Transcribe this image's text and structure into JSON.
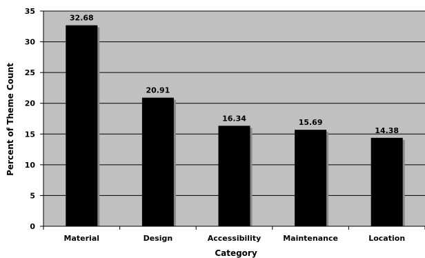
{
  "chart_data": {
    "type": "bar",
    "categories": [
      "Material",
      "Design",
      "Accessibility",
      "Maintenance",
      "Location"
    ],
    "values": [
      32.68,
      20.91,
      16.34,
      15.69,
      14.38
    ],
    "data_labels": [
      "32.68",
      "20.91",
      "16.34",
      "15.69",
      "14.38"
    ],
    "xlabel": "Category",
    "ylabel": "Percent of Theme Count",
    "ylim": [
      0,
      35
    ],
    "y_ticks": [
      0,
      5,
      10,
      15,
      20,
      25,
      30,
      35
    ],
    "grid": true,
    "legend": "none",
    "colors": {
      "plot_background": "#c0c0c0",
      "bar": "#000000",
      "gridline": "#000000"
    }
  }
}
